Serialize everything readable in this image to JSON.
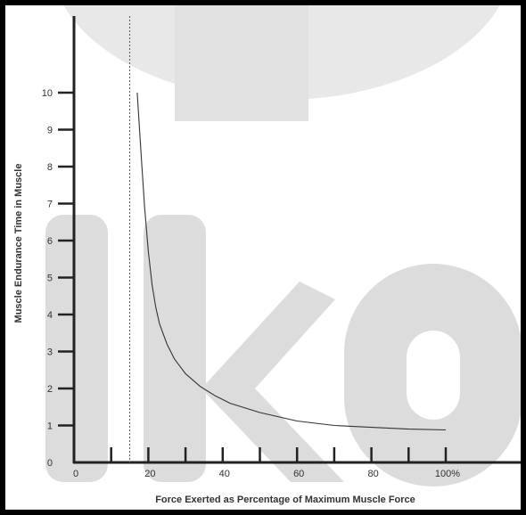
{
  "chart_data": {
    "type": "line",
    "title": "",
    "xlabel": "Force Exerted as Percentage of Maximum Muscle Force",
    "ylabel": "Muscle Endurance Time in Muscle",
    "xlim": [
      0,
      120
    ],
    "ylim": [
      0,
      11
    ],
    "x_ticks": [
      0,
      10,
      20,
      30,
      40,
      50,
      60,
      70,
      80,
      90,
      100
    ],
    "x_tick_labels": [
      {
        "x": 0,
        "label": "0"
      },
      {
        "x": 20,
        "label": "20"
      },
      {
        "x": 40,
        "label": "40"
      },
      {
        "x": 60,
        "label": "60"
      },
      {
        "x": 80,
        "label": "80"
      },
      {
        "x": 100,
        "label": "100%"
      }
    ],
    "y_ticks": [
      1,
      2,
      3,
      4,
      5,
      6,
      7,
      8,
      9,
      10
    ],
    "y_tick_labels": [
      "0",
      "1",
      "2",
      "3",
      "4",
      "5",
      "6",
      "7",
      "8",
      "9",
      "10"
    ],
    "reference_line_x": 15,
    "grid": false,
    "legend": "none",
    "series": [
      {
        "x": [
          17,
          18,
          19,
          20,
          21,
          22,
          23,
          25,
          27,
          30,
          34,
          38,
          42,
          50,
          60,
          70,
          80,
          90,
          100
        ],
        "y": [
          10.0,
          8.4,
          6.9,
          5.7,
          4.8,
          4.2,
          3.75,
          3.2,
          2.8,
          2.4,
          2.05,
          1.8,
          1.6,
          1.35,
          1.12,
          1.0,
          0.95,
          0.9,
          0.88
        ],
        "color": "#333333"
      }
    ],
    "colors": {
      "axis": "#222222",
      "watermark": "#c9c9c9",
      "background": "#ffffff"
    }
  }
}
